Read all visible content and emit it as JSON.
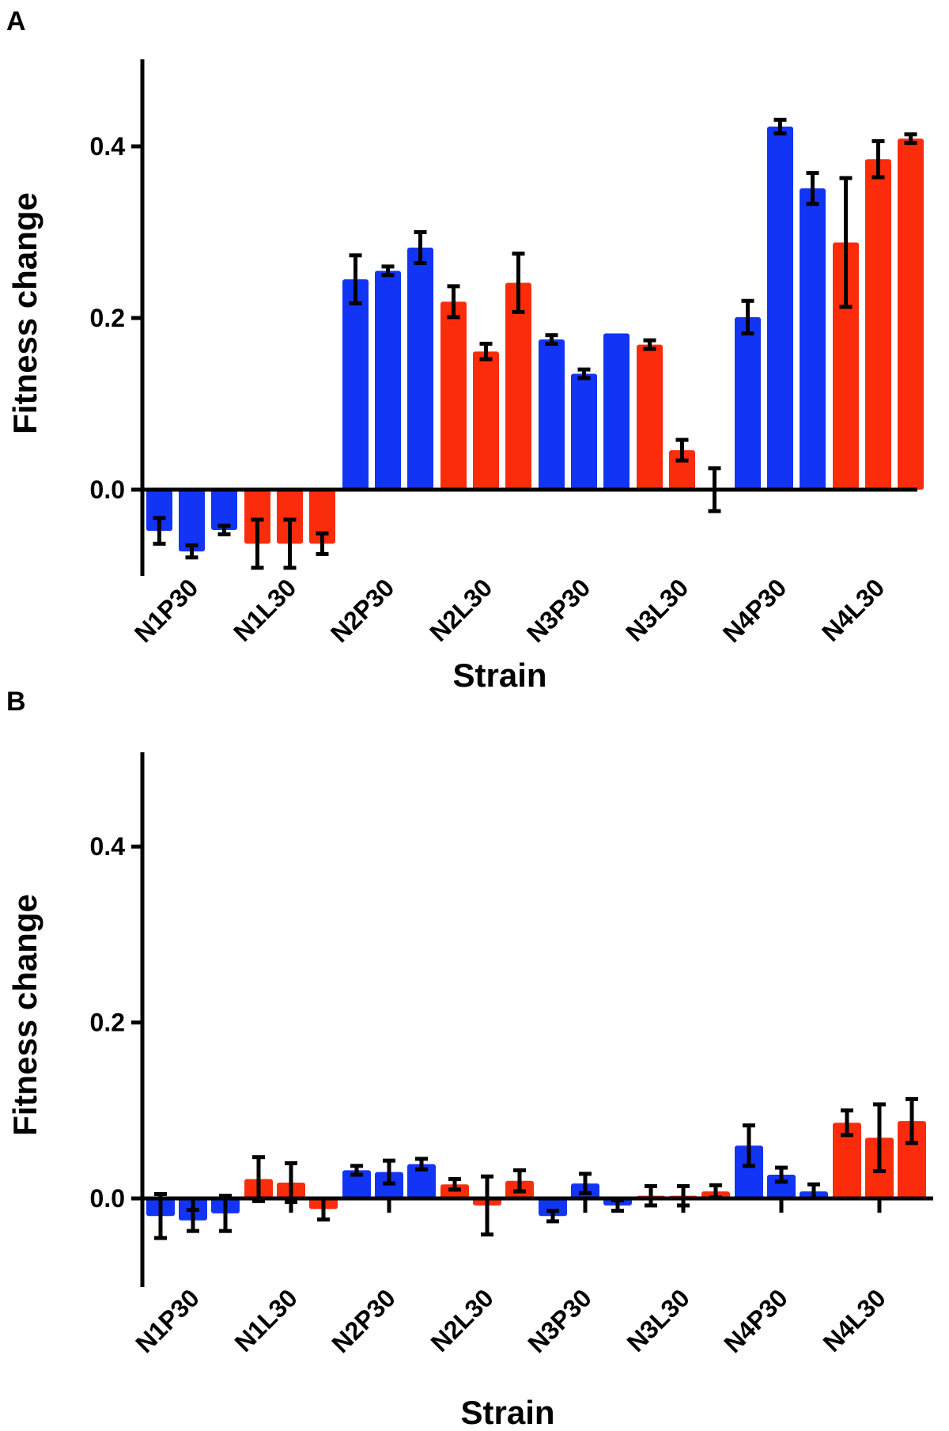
{
  "colors": {
    "blue": "#1234F5",
    "red": "#FB2C0B",
    "error_bar": "#000000",
    "axis": "#000000"
  },
  "chart_data": [
    {
      "panel": "A",
      "type": "bar",
      "xlabel": "Strain",
      "ylabel": "Fitness change",
      "ylim": [
        -0.1,
        0.5
      ],
      "yticks": [
        "0.0",
        "0.2",
        "0.4"
      ],
      "ytick_values": [
        0.0,
        0.2,
        0.4
      ],
      "categories": [
        "N1P30",
        "N1L30",
        "N2P30",
        "N2L30",
        "N3P30",
        "N3L30",
        "N4P30",
        "N4L30"
      ],
      "bar_colors": [
        "blue",
        "red",
        "blue",
        "red",
        "blue",
        "red",
        "blue",
        "red"
      ],
      "replicates": 3,
      "values": [
        [
          -0.048,
          -0.072,
          -0.047
        ],
        [
          -0.063,
          -0.063,
          -0.063
        ],
        [
          0.245,
          0.255,
          0.282
        ],
        [
          0.219,
          0.161,
          0.241
        ],
        [
          0.175,
          0.135,
          0.182
        ],
        [
          0.169,
          0.046,
          0.0
        ],
        [
          0.201,
          0.423,
          0.351
        ],
        [
          0.288,
          0.385,
          0.409
        ]
      ],
      "errors": [
        [
          0.015,
          0.007,
          0.005
        ],
        [
          0.028,
          0.028,
          0.012
        ],
        [
          0.028,
          0.005,
          0.018
        ],
        [
          0.018,
          0.009,
          0.034
        ],
        [
          0.005,
          0.005,
          0.0
        ],
        [
          0.005,
          0.012,
          0.025
        ],
        [
          0.019,
          0.008,
          0.018
        ],
        [
          0.075,
          0.021,
          0.005
        ]
      ]
    },
    {
      "panel": "B",
      "type": "bar",
      "xlabel": "Strain",
      "ylabel": "Fitness change",
      "ylim": [
        -0.1,
        0.5
      ],
      "yticks": [
        "0.0",
        "0.2",
        "0.4"
      ],
      "ytick_values": [
        0.0,
        0.2,
        0.4
      ],
      "categories": [
        "N1P30",
        "N1L30",
        "N2P30",
        "N2L30",
        "N3P30",
        "N3L30",
        "N4P30",
        "N4L30"
      ],
      "bar_colors": [
        "blue",
        "red",
        "blue",
        "red",
        "blue",
        "red",
        "blue",
        "red"
      ],
      "replicates": 3,
      "values": [
        [
          -0.02,
          -0.025,
          -0.017
        ],
        [
          0.022,
          0.018,
          -0.012
        ],
        [
          0.032,
          0.03,
          0.039
        ],
        [
          0.016,
          -0.008,
          0.02
        ],
        [
          -0.02,
          0.017,
          -0.008
        ],
        [
          0.003,
          0.003,
          0.008
        ],
        [
          0.06,
          0.027,
          0.008
        ],
        [
          0.086,
          0.069,
          0.088
        ]
      ],
      "errors": [
        [
          0.025,
          0.012,
          0.02
        ],
        [
          0.025,
          0.022,
          0.012
        ],
        [
          0.005,
          0.013,
          0.006
        ],
        [
          0.006,
          0.033,
          0.012
        ],
        [
          0.006,
          0.011,
          0.006
        ],
        [
          0.011,
          0.011,
          0.007
        ],
        [
          0.023,
          0.008,
          0.008
        ],
        [
          0.014,
          0.038,
          0.025
        ]
      ]
    }
  ]
}
